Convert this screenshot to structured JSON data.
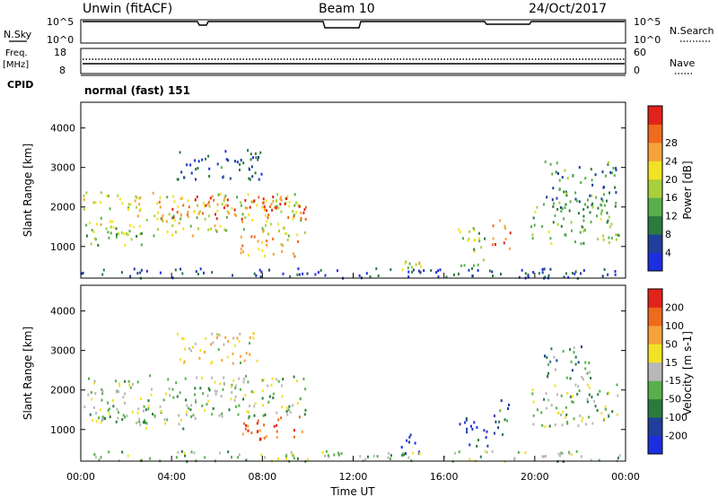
{
  "header": {
    "station": "Unwin (fitACF)",
    "beam": "Beam 10",
    "date": "24/Oct/2017"
  },
  "nsky_panel": {
    "label": "N.Sky",
    "ticks": [
      "10^5",
      "10^0"
    ],
    "right_label": "N.Search"
  },
  "freq_panel": {
    "label": "Freq.",
    "unit": "[MHz]",
    "left_ticks": [
      "18",
      "8"
    ],
    "right_ticks": [
      "60",
      "0"
    ],
    "right_label": "Nave"
  },
  "cpid_panel": {
    "label": "CPID",
    "mode": "normal (fast) 151"
  },
  "x_axis": {
    "ticks": [
      "00:00",
      "04:00",
      "08:00",
      "12:00",
      "16:00",
      "20:00",
      "00:00"
    ],
    "label": "Time UT"
  },
  "chart_data": [
    {
      "type": "heatmap",
      "name": "power",
      "ylabel": "Slant Range [km]",
      "yticks": [
        1000,
        2000,
        3000,
        4000
      ],
      "ylim": [
        200,
        4650
      ],
      "xlim": [
        0,
        24
      ],
      "colorbar": {
        "label": "Power [dB]",
        "ticks": [
          4,
          8,
          12,
          16,
          20,
          24,
          28
        ],
        "colors": [
          "#1b2fe0",
          "#1f3f9a",
          "#2d7a3f",
          "#57b04c",
          "#a9cf3a",
          "#f2e225",
          "#f6a23a",
          "#ee6a1c",
          "#e2231b"
        ]
      },
      "regions": [
        {
          "t0": 0.1,
          "t1": 9.9,
          "r0": 1300,
          "r1": 2400,
          "level": 0.55
        },
        {
          "t0": 4.9,
          "t1": 9.9,
          "r0": 1700,
          "r1": 2300,
          "level": 0.92
        },
        {
          "t0": 3.4,
          "t1": 4.9,
          "r0": 1700,
          "r1": 2200,
          "level": 0.78
        },
        {
          "t0": 7.0,
          "t1": 9.6,
          "r0": 750,
          "r1": 1300,
          "level": 0.7
        },
        {
          "t0": 0.2,
          "t1": 2.8,
          "r0": 1050,
          "r1": 1500,
          "level": 0.45
        },
        {
          "t0": 4.2,
          "t1": 8.0,
          "r0": 2700,
          "r1": 3500,
          "level": 0.2
        },
        {
          "t0": 18.1,
          "t1": 18.9,
          "r0": 900,
          "r1": 1700,
          "level": 0.85
        },
        {
          "t0": 16.6,
          "t1": 17.9,
          "r0": 500,
          "r1": 1500,
          "level": 0.45
        },
        {
          "t0": 14.0,
          "t1": 15.1,
          "r0": 300,
          "r1": 900,
          "level": 0.55
        },
        {
          "t0": 19.8,
          "t1": 23.7,
          "r0": 1100,
          "r1": 2200,
          "level": 0.4
        },
        {
          "t0": 20.4,
          "t1": 23.6,
          "r0": 2000,
          "r1": 3200,
          "level": 0.3
        },
        {
          "t0": 0.0,
          "t1": 24.0,
          "r0": 220,
          "r1": 480,
          "level": 0.15
        }
      ]
    },
    {
      "type": "heatmap",
      "name": "velocity",
      "ylabel": "Slant Range [km]",
      "yticks": [
        1000,
        2000,
        3000,
        4000
      ],
      "ylim": [
        200,
        4650
      ],
      "xlim": [
        0,
        24
      ],
      "colorbar": {
        "label": "Velocity [m s-1]",
        "ticks": [
          200,
          100,
          50,
          15,
          -15,
          -50,
          -100,
          -200
        ],
        "colors": [
          "#1b2fe0",
          "#1f3f9a",
          "#2d7a3f",
          "#57b04c",
          "#b8b8b8",
          "#f2e225",
          "#f6a23a",
          "#ee6a1c",
          "#e2231b"
        ]
      },
      "regions": [
        {
          "t0": 0.1,
          "t1": 9.9,
          "r0": 1300,
          "r1": 2400,
          "level": 0.45
        },
        {
          "t0": 0.2,
          "t1": 4.8,
          "r0": 1050,
          "r1": 1450,
          "level": 0.45
        },
        {
          "t0": 7.0,
          "t1": 9.8,
          "r0": 750,
          "r1": 1350,
          "level": 0.85
        },
        {
          "t0": 4.2,
          "t1": 7.8,
          "r0": 2700,
          "r1": 3500,
          "level": 0.6
        },
        {
          "t0": 18.1,
          "t1": 18.9,
          "r0": 900,
          "r1": 1800,
          "level": 0.25
        },
        {
          "t0": 16.6,
          "t1": 17.9,
          "r0": 600,
          "r1": 1400,
          "level": 0.1
        },
        {
          "t0": 14.0,
          "t1": 15.1,
          "r0": 300,
          "r1": 900,
          "level": 0.1
        },
        {
          "t0": 19.8,
          "t1": 23.7,
          "r0": 1100,
          "r1": 2200,
          "level": 0.45
        },
        {
          "t0": 20.4,
          "t1": 22.5,
          "r0": 2300,
          "r1": 3200,
          "level": 0.35
        },
        {
          "t0": 0.0,
          "t1": 24.0,
          "r0": 220,
          "r1": 480,
          "level": 0.45
        }
      ]
    }
  ]
}
